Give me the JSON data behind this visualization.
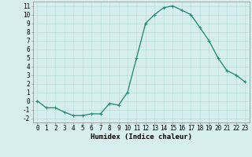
{
  "x": [
    0,
    1,
    2,
    3,
    4,
    5,
    6,
    7,
    8,
    9,
    10,
    11,
    12,
    13,
    14,
    15,
    16,
    17,
    18,
    19,
    20,
    21,
    22,
    23
  ],
  "y": [
    0,
    -0.8,
    -0.8,
    -1.3,
    -1.7,
    -1.7,
    -1.5,
    -1.5,
    -0.3,
    -0.5,
    1.0,
    5.0,
    9.0,
    10.0,
    10.8,
    11.0,
    10.5,
    10.0,
    8.5,
    7.0,
    5.0,
    3.5,
    3.0,
    2.2
  ],
  "line_color": "#2d8b7a",
  "marker": "+",
  "marker_size": 3,
  "bg_color": "#d6efee",
  "grid_color": "#b8dede",
  "xlabel": "Humidex (Indice chaleur)",
  "xlim": [
    -0.5,
    23.5
  ],
  "ylim": [
    -2.5,
    11.5
  ],
  "xticks": [
    0,
    1,
    2,
    3,
    4,
    5,
    6,
    7,
    8,
    9,
    10,
    11,
    12,
    13,
    14,
    15,
    16,
    17,
    18,
    19,
    20,
    21,
    22,
    23
  ],
  "yticks": [
    -2,
    -1,
    0,
    1,
    2,
    3,
    4,
    5,
    6,
    7,
    8,
    9,
    10,
    11
  ],
  "tick_fontsize": 5.5,
  "xlabel_fontsize": 6.5,
  "line_width": 1.0
}
